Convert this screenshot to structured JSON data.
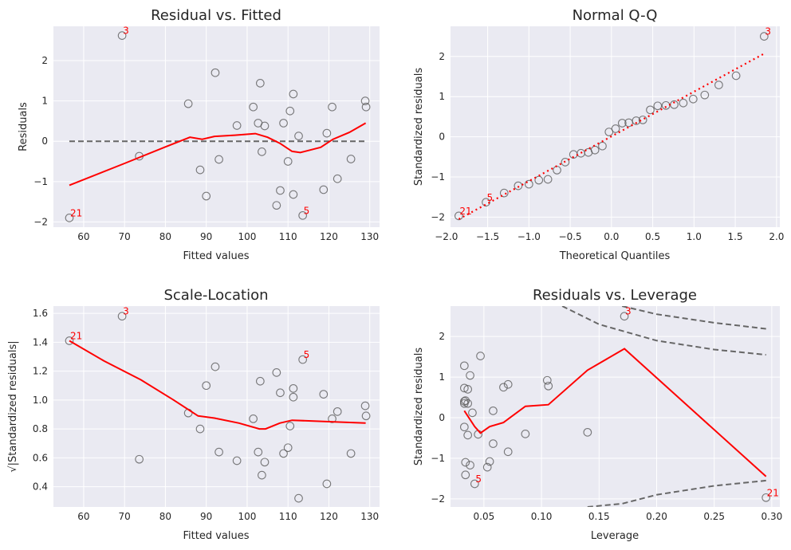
{
  "colors": {
    "points": "#5a5a5a",
    "smooth": "#ff0000",
    "reference": "#666666",
    "background": "#EAEAF2"
  },
  "chart_data": [
    {
      "id": "resid_fitted",
      "type": "scatter",
      "title": "Residual vs. Fitted",
      "xlabel": "Fitted values",
      "ylabel": "Residuals",
      "xlim": [
        52.6,
        132.4
      ],
      "ylim": [
        -2.13,
        2.85
      ],
      "xticks": [
        60,
        70,
        80,
        90,
        100,
        110,
        120,
        130
      ],
      "yticks": [
        -2,
        -1,
        0,
        1,
        2
      ],
      "xticklabels": [
        "60",
        "70",
        "80",
        "90",
        "100",
        "110",
        "120",
        "130"
      ],
      "yticklabels": [
        "−2",
        "−1",
        "0",
        "1",
        "2"
      ],
      "points": [
        [
          56.5,
          -1.9
        ],
        [
          69.4,
          2.62
        ],
        [
          73.6,
          -0.37
        ],
        [
          85.6,
          0.93
        ],
        [
          88.5,
          -0.71
        ],
        [
          90,
          -1.36
        ],
        [
          92.2,
          1.7
        ],
        [
          93.1,
          -0.45
        ],
        [
          97.5,
          0.39
        ],
        [
          101.5,
          0.85
        ],
        [
          102.7,
          0.45
        ],
        [
          103.2,
          1.44
        ],
        [
          103.6,
          -0.26
        ],
        [
          104.3,
          0.38
        ],
        [
          107.2,
          -1.59
        ],
        [
          108.1,
          -1.22
        ],
        [
          108.9,
          0.45
        ],
        [
          110,
          -0.5
        ],
        [
          110.5,
          0.75
        ],
        [
          111.3,
          1.17
        ],
        [
          111.3,
          -1.32
        ],
        [
          112.6,
          0.13
        ],
        [
          113.6,
          -1.84
        ],
        [
          118.7,
          -1.2
        ],
        [
          119.5,
          0.2
        ],
        [
          120.8,
          0.85
        ],
        [
          122.1,
          -0.93
        ],
        [
          125.4,
          -0.44
        ],
        [
          128.9,
          1.0
        ],
        [
          129.1,
          0.85
        ]
      ],
      "smooth": [
        [
          56.5,
          -1.09
        ],
        [
          70,
          -0.55
        ],
        [
          80,
          -0.14
        ],
        [
          86,
          0.1
        ],
        [
          89,
          0.05
        ],
        [
          92,
          0.12
        ],
        [
          97,
          0.15
        ],
        [
          102,
          0.19
        ],
        [
          105,
          0.1
        ],
        [
          108,
          -0.05
        ],
        [
          111,
          -0.25
        ],
        [
          113,
          -0.28
        ],
        [
          118,
          -0.15
        ],
        [
          121,
          0.05
        ],
        [
          125,
          0.22
        ],
        [
          129,
          0.45
        ]
      ],
      "reference": {
        "y": 0,
        "x": [
          56.5,
          129.1
        ]
      },
      "annotations": [
        {
          "label": "3",
          "x": 69.4,
          "y": 2.62
        },
        {
          "label": "21",
          "x": 56.5,
          "y": -1.9
        },
        {
          "label": "5",
          "x": 113.6,
          "y": -1.84
        }
      ]
    },
    {
      "id": "qq",
      "type": "scatter",
      "title": "Normal Q-Q",
      "xlabel": "Theoretical Quantiles",
      "ylabel": "Standardized residuals",
      "xlim": [
        -1.95,
        2.04
      ],
      "ylim": [
        -2.25,
        2.75
      ],
      "xticks": [
        -2.0,
        -1.5,
        -1.0,
        -0.5,
        0.0,
        0.5,
        1.0,
        1.5,
        2.0
      ],
      "yticks": [
        -2,
        -1,
        0,
        1,
        2
      ],
      "xticklabels": [
        "−2.0",
        "−1.5",
        "−1.0",
        "−0.5",
        "0.0",
        "0.5",
        "1.0",
        "1.5",
        "2.0"
      ],
      "yticklabels": [
        "−2",
        "−1",
        "0",
        "1",
        "2"
      ],
      "points": [
        [
          -1.85,
          -1.97
        ],
        [
          -1.52,
          -1.63
        ],
        [
          -1.3,
          -1.4
        ],
        [
          -1.13,
          -1.22
        ],
        [
          -1.0,
          -1.18
        ],
        [
          -0.88,
          -1.08
        ],
        [
          -0.77,
          -1.06
        ],
        [
          -0.66,
          -0.83
        ],
        [
          -0.56,
          -0.63
        ],
        [
          -0.46,
          -0.44
        ],
        [
          -0.37,
          -0.41
        ],
        [
          -0.28,
          -0.39
        ],
        [
          -0.2,
          -0.33
        ],
        [
          -0.11,
          -0.23
        ],
        [
          -0.03,
          0.12
        ],
        [
          0.05,
          0.2
        ],
        [
          0.13,
          0.34
        ],
        [
          0.21,
          0.35
        ],
        [
          0.3,
          0.4
        ],
        [
          0.38,
          0.42
        ],
        [
          0.47,
          0.67
        ],
        [
          0.56,
          0.77
        ],
        [
          0.66,
          0.78
        ],
        [
          0.76,
          0.8
        ],
        [
          0.87,
          0.84
        ],
        [
          0.99,
          0.94
        ],
        [
          1.13,
          1.04
        ],
        [
          1.3,
          1.29
        ],
        [
          1.51,
          1.52
        ],
        [
          1.85,
          2.5
        ]
      ],
      "line": [
        [
          -1.85,
          -2.05
        ],
        [
          1.85,
          2.07
        ]
      ],
      "annotations": [
        {
          "label": "3",
          "x": 1.85,
          "y": 2.5
        },
        {
          "label": "5",
          "x": -1.52,
          "y": -1.63
        },
        {
          "label": "21",
          "x": -1.85,
          "y": -1.97
        }
      ]
    },
    {
      "id": "scale_location",
      "type": "scatter",
      "title": "Scale-Location",
      "xlabel": "Fitted values",
      "ylabel": "√|Standardized residuals|",
      "xlim": [
        52.6,
        132.4
      ],
      "ylim": [
        0.26,
        1.65
      ],
      "xticks": [
        60,
        70,
        80,
        90,
        100,
        110,
        120,
        130
      ],
      "yticks": [
        0.4,
        0.6,
        0.8,
        1.0,
        1.2,
        1.4,
        1.6
      ],
      "xticklabels": [
        "60",
        "70",
        "80",
        "90",
        "100",
        "110",
        "120",
        "130"
      ],
      "yticklabels": [
        "0.4",
        "0.6",
        "0.8",
        "1.0",
        "1.2",
        "1.4",
        "1.6"
      ],
      "points": [
        [
          56.5,
          1.41
        ],
        [
          69.4,
          1.58
        ],
        [
          73.6,
          0.59
        ],
        [
          85.6,
          0.91
        ],
        [
          88.5,
          0.8
        ],
        [
          90,
          1.1
        ],
        [
          92.2,
          1.23
        ],
        [
          93.1,
          0.64
        ],
        [
          97.5,
          0.58
        ],
        [
          101.5,
          0.87
        ],
        [
          102.7,
          0.64
        ],
        [
          103.2,
          1.13
        ],
        [
          103.6,
          0.48
        ],
        [
          104.3,
          0.57
        ],
        [
          107.2,
          1.19
        ],
        [
          108.1,
          1.05
        ],
        [
          108.9,
          0.63
        ],
        [
          110,
          0.67
        ],
        [
          110.5,
          0.82
        ],
        [
          111.3,
          1.08
        ],
        [
          111.3,
          1.02
        ],
        [
          112.6,
          0.32
        ],
        [
          113.6,
          1.28
        ],
        [
          118.7,
          1.04
        ],
        [
          119.5,
          0.42
        ],
        [
          120.8,
          0.87
        ],
        [
          122.1,
          0.92
        ],
        [
          125.4,
          0.63
        ],
        [
          128.9,
          0.96
        ],
        [
          129.1,
          0.89
        ]
      ],
      "smooth": [
        [
          56.5,
          1.41
        ],
        [
          65,
          1.27
        ],
        [
          74,
          1.14
        ],
        [
          82,
          1.0
        ],
        [
          88,
          0.89
        ],
        [
          92,
          0.875
        ],
        [
          98,
          0.84
        ],
        [
          103,
          0.8
        ],
        [
          104.5,
          0.8
        ],
        [
          108,
          0.84
        ],
        [
          111,
          0.86
        ],
        [
          120,
          0.85
        ],
        [
          129,
          0.84
        ]
      ],
      "annotations": [
        {
          "label": "3",
          "x": 69.4,
          "y": 1.58
        },
        {
          "label": "21",
          "x": 56.5,
          "y": 1.41
        },
        {
          "label": "5",
          "x": 113.6,
          "y": 1.28
        }
      ]
    },
    {
      "id": "resid_leverage",
      "type": "scatter",
      "title": "Residuals vs. Leverage",
      "xlabel": "Leverage",
      "ylabel": "Standardized residuals",
      "xlim": [
        0.021,
        0.307
      ],
      "ylim": [
        -2.2,
        2.75
      ],
      "xticks": [
        0.05,
        0.1,
        0.15,
        0.2,
        0.25,
        0.3
      ],
      "yticks": [
        -2,
        -1,
        0,
        1,
        2
      ],
      "xticklabels": [
        "0.05",
        "0.10",
        "0.15",
        "0.20",
        "0.25",
        "0.30"
      ],
      "yticklabels": [
        "−2",
        "−1",
        "0",
        "1",
        "2"
      ],
      "points": [
        [
          0.033,
          1.28
        ],
        [
          0.033,
          0.73
        ],
        [
          0.033,
          0.4
        ],
        [
          0.033,
          0.35
        ],
        [
          0.034,
          0.42
        ],
        [
          0.033,
          -0.23
        ],
        [
          0.034,
          -1.1
        ],
        [
          0.034,
          -1.41
        ],
        [
          0.036,
          0.7
        ],
        [
          0.036,
          0.35
        ],
        [
          0.036,
          -0.43
        ],
        [
          0.038,
          1.04
        ],
        [
          0.038,
          -1.17
        ],
        [
          0.04,
          0.12
        ],
        [
          0.042,
          -1.63
        ],
        [
          0.045,
          -0.41
        ],
        [
          0.047,
          1.52
        ],
        [
          0.053,
          -1.22
        ],
        [
          0.055,
          -1.08
        ],
        [
          0.058,
          0.17
        ],
        [
          0.058,
          -0.64
        ],
        [
          0.067,
          0.75
        ],
        [
          0.071,
          0.82
        ],
        [
          0.071,
          -0.84
        ],
        [
          0.086,
          -0.4
        ],
        [
          0.105,
          0.92
        ],
        [
          0.106,
          0.78
        ],
        [
          0.14,
          -0.36
        ],
        [
          0.172,
          2.5
        ],
        [
          0.295,
          -1.97
        ]
      ],
      "smooth": [
        [
          0.033,
          0.17
        ],
        [
          0.042,
          -0.22
        ],
        [
          0.047,
          -0.38
        ],
        [
          0.055,
          -0.22
        ],
        [
          0.067,
          -0.12
        ],
        [
          0.086,
          0.28
        ],
        [
          0.106,
          0.32
        ],
        [
          0.14,
          1.17
        ],
        [
          0.172,
          1.7
        ],
        [
          0.295,
          -1.45
        ]
      ],
      "cooks_curves": [
        [
          [
            0.17,
            2.75
          ],
          [
            0.2,
            2.55
          ],
          [
            0.25,
            2.34
          ],
          [
            0.295,
            2.19
          ]
        ],
        [
          [
            0.118,
            2.75
          ],
          [
            0.15,
            2.3
          ],
          [
            0.2,
            1.9
          ],
          [
            0.25,
            1.68
          ],
          [
            0.295,
            1.55
          ]
        ],
        [
          [
            0.14,
            -2.2
          ],
          [
            0.17,
            -2.12
          ],
          [
            0.2,
            -1.9
          ],
          [
            0.25,
            -1.68
          ],
          [
            0.295,
            -1.55
          ]
        ]
      ],
      "annotations": [
        {
          "label": "3",
          "x": 0.172,
          "y": 2.5
        },
        {
          "label": "5",
          "x": 0.042,
          "y": -1.63
        },
        {
          "label": "21",
          "x": 0.295,
          "y": -1.97
        }
      ]
    }
  ]
}
